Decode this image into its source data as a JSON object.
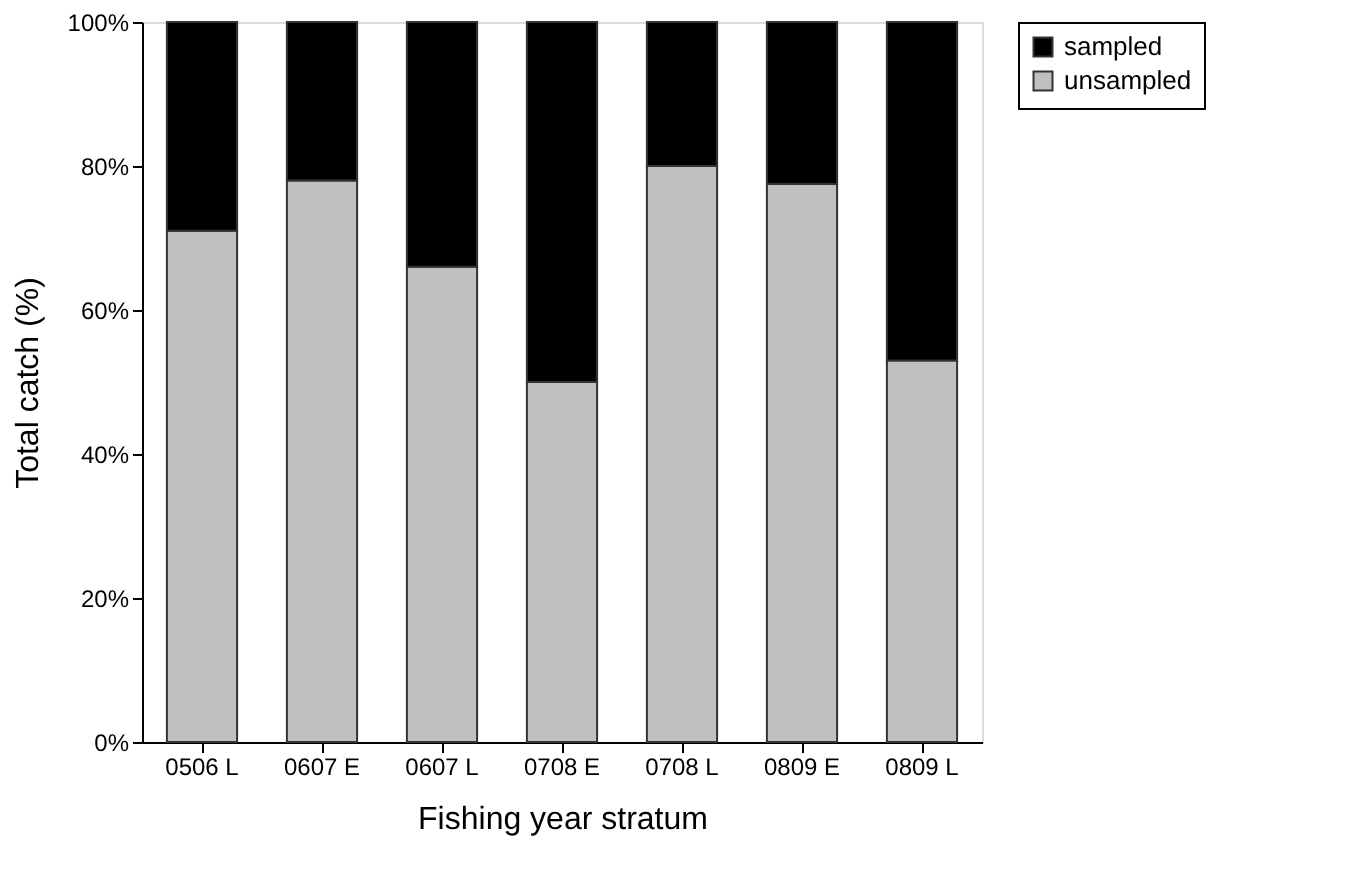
{
  "chart_data": {
    "type": "bar",
    "stacked": true,
    "xlabel": "Fishing year stratum",
    "ylabel": "Total catch (%)",
    "categories": [
      "0506 L",
      "0607 E",
      "0607 L",
      "0708 E",
      "0708 L",
      "0809 E",
      "0809 L"
    ],
    "series": [
      {
        "name": "unsampled",
        "color": "#c0c0c0",
        "values": [
          71,
          78,
          66,
          50,
          80,
          77.5,
          53
        ]
      },
      {
        "name": "sampled",
        "color": "#000000",
        "values": [
          29,
          22,
          34,
          50,
          20,
          22.5,
          47
        ]
      }
    ],
    "ylim": [
      0,
      100
    ],
    "yticks": [
      {
        "value": 0,
        "label": "0%"
      },
      {
        "value": 20,
        "label": "20%"
      },
      {
        "value": 40,
        "label": "40%"
      },
      {
        "value": 60,
        "label": "60%"
      },
      {
        "value": 80,
        "label": "80%"
      },
      {
        "value": 100,
        "label": "100%"
      }
    ],
    "grid": false,
    "legend": "right"
  }
}
